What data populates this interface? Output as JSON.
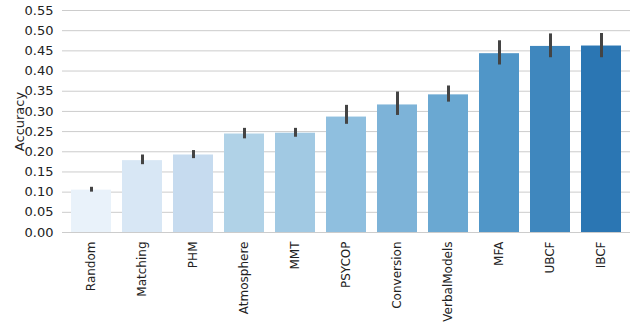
{
  "chart_data": {
    "type": "bar",
    "y_label": "Accuracy",
    "categories": [
      "Random",
      "Matching",
      "PHM",
      "Atmosphere",
      "MMT",
      "PSYCOP",
      "Conversion",
      "VerbalModels",
      "MFA",
      "UBCF",
      "IBCF"
    ],
    "values": [
      0.105,
      0.178,
      0.192,
      0.244,
      0.246,
      0.286,
      0.316,
      0.341,
      0.443,
      0.461,
      0.462
    ],
    "error_low": [
      0.1,
      0.168,
      0.183,
      0.232,
      0.236,
      0.268,
      0.29,
      0.323,
      0.415,
      0.433,
      0.433
    ],
    "error_high": [
      0.112,
      0.192,
      0.203,
      0.258,
      0.258,
      0.315,
      0.348,
      0.363,
      0.475,
      0.492,
      0.493
    ],
    "colors": [
      "#e9f2fa",
      "#d8e7f5",
      "#c6dbef",
      "#b0d2e7",
      "#a1c9e3",
      "#8fbfdf",
      "#7db3d8",
      "#6aa8d2",
      "#5096c8",
      "#3f87be",
      "#2b76b3"
    ],
    "ylim": [
      0,
      0.55
    ],
    "yticks": [
      {
        "value": 0,
        "label": "0.00"
      },
      {
        "value": 0.05,
        "label": "0.05"
      },
      {
        "value": 0.1,
        "label": "0.10"
      },
      {
        "value": 0.15,
        "label": "0.15"
      },
      {
        "value": 0.2,
        "label": "0.20"
      },
      {
        "value": 0.25,
        "label": "0.25"
      },
      {
        "value": 0.3,
        "label": "0.30"
      },
      {
        "value": 0.35,
        "label": "0.35"
      },
      {
        "value": 0.4,
        "label": "0.40"
      },
      {
        "value": 0.45,
        "label": "0.45"
      },
      {
        "value": 0.5,
        "label": "0.50"
      },
      {
        "value": 0.55,
        "label": "0.55"
      }
    ],
    "grid": true
  }
}
